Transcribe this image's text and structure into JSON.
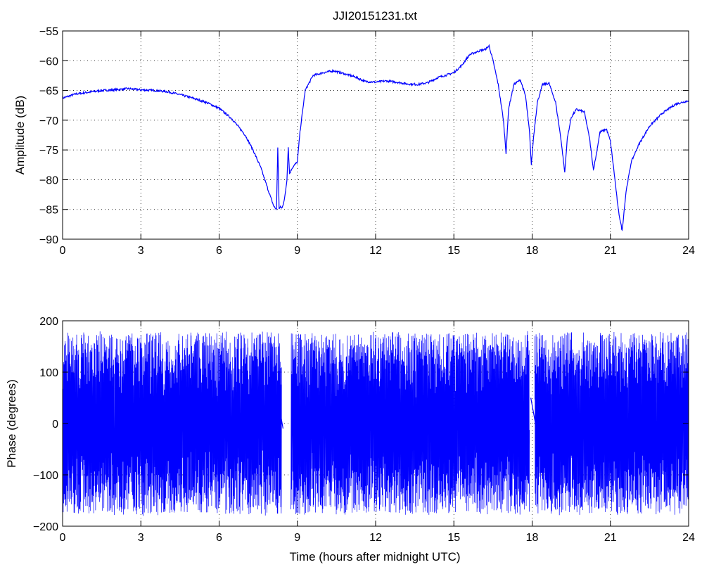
{
  "figure": {
    "title": "JJI20151231.txt",
    "line_color": "#0000ff",
    "axis_color": "#000000",
    "background": "#ffffff"
  },
  "chart_data": [
    {
      "type": "line",
      "title": "JJI20151231.txt",
      "xlabel": "",
      "ylabel": "Amplitude (dB)",
      "xlim": [
        0,
        24
      ],
      "ylim": [
        -90,
        -55
      ],
      "xticks": [
        0,
        3,
        6,
        9,
        12,
        15,
        18,
        21,
        24
      ],
      "yticks": [
        -90,
        -85,
        -80,
        -75,
        -70,
        -65,
        -60,
        -55
      ],
      "grid": true,
      "series": [
        {
          "color": "#0000ff",
          "x": [
            0,
            0.5,
            1,
            1.5,
            2,
            2.5,
            3,
            3.5,
            4,
            4.5,
            5,
            5.5,
            6,
            6.5,
            7,
            7.3,
            7.6,
            7.9,
            8.1,
            8.2,
            8.25,
            8.3,
            8.35,
            8.4,
            8.5,
            8.6,
            8.65,
            8.7,
            8.8,
            9.0,
            9.1,
            9.3,
            9.6,
            10,
            10.4,
            10.8,
            11.2,
            11.6,
            12,
            12.4,
            12.8,
            13.2,
            13.6,
            14,
            14.4,
            14.8,
            15,
            15.3,
            15.6,
            16,
            16.2,
            16.35,
            16.5,
            16.7,
            16.9,
            17.0,
            17.1,
            17.3,
            17.55,
            17.75,
            17.9,
            17.97,
            18.05,
            18.2,
            18.4,
            18.65,
            18.9,
            19.1,
            19.25,
            19.35,
            19.5,
            19.7,
            20.0,
            20.2,
            20.35,
            20.45,
            20.6,
            20.85,
            21.0,
            21.15,
            21.3,
            21.45,
            21.6,
            21.8,
            22.1,
            22.5,
            23,
            23.5,
            24
          ],
          "y": [
            -66.3,
            -65.6,
            -65.3,
            -65.0,
            -64.9,
            -64.7,
            -64.9,
            -65.0,
            -65.2,
            -65.7,
            -66.3,
            -67.0,
            -68.0,
            -69.8,
            -72.5,
            -75.0,
            -78.0,
            -82.0,
            -84.5,
            -85.0,
            -74.5,
            -85.0,
            -84.5,
            -84.8,
            -83.5,
            -80.0,
            -74.5,
            -79.0,
            -78.0,
            -77.0,
            -72.0,
            -65.0,
            -62.5,
            -62.0,
            -61.7,
            -62.2,
            -62.7,
            -63.5,
            -63.6,
            -63.4,
            -63.6,
            -63.9,
            -64.0,
            -63.7,
            -62.8,
            -62.3,
            -62.0,
            -60.8,
            -59.0,
            -58.3,
            -58.1,
            -57.5,
            -60.0,
            -64.0,
            -70.0,
            -75.5,
            -68.0,
            -64.0,
            -63.2,
            -66.0,
            -72.0,
            -77.5,
            -73.0,
            -67.0,
            -64.0,
            -63.8,
            -67.0,
            -73.0,
            -78.8,
            -73.0,
            -69.5,
            -68.2,
            -68.6,
            -73.0,
            -78.3,
            -76.0,
            -72.0,
            -71.5,
            -73.5,
            -79.0,
            -85.0,
            -88.6,
            -82.0,
            -77.0,
            -74.0,
            -71.0,
            -68.8,
            -67.3,
            -66.7
          ]
        }
      ]
    },
    {
      "type": "line",
      "title": "",
      "xlabel": "Time (hours after midnight UTC)",
      "ylabel": "Phase (degrees)",
      "xlim": [
        0,
        24
      ],
      "ylim": [
        -200,
        200
      ],
      "xticks": [
        0,
        3,
        6,
        9,
        12,
        15,
        18,
        21,
        24
      ],
      "yticks": [
        -200,
        -100,
        0,
        100,
        200
      ],
      "grid": true,
      "series": [
        {
          "color": "#0000ff",
          "style": "dense phase wrapping between about -180 and 180 degrees",
          "wrap_range": [
            -180,
            180
          ],
          "gaps": [
            [
              8.4,
              8.75
            ],
            [
              17.9,
              18.1
            ]
          ],
          "x": [
            8.0,
            8.2,
            8.35,
            8.45,
            17.6,
            17.8,
            17.95,
            18.2,
            21.2,
            21.3
          ],
          "y": [
            40,
            60,
            20,
            -10,
            -40,
            -60,
            50,
            -20,
            -20,
            10
          ]
        }
      ]
    }
  ]
}
